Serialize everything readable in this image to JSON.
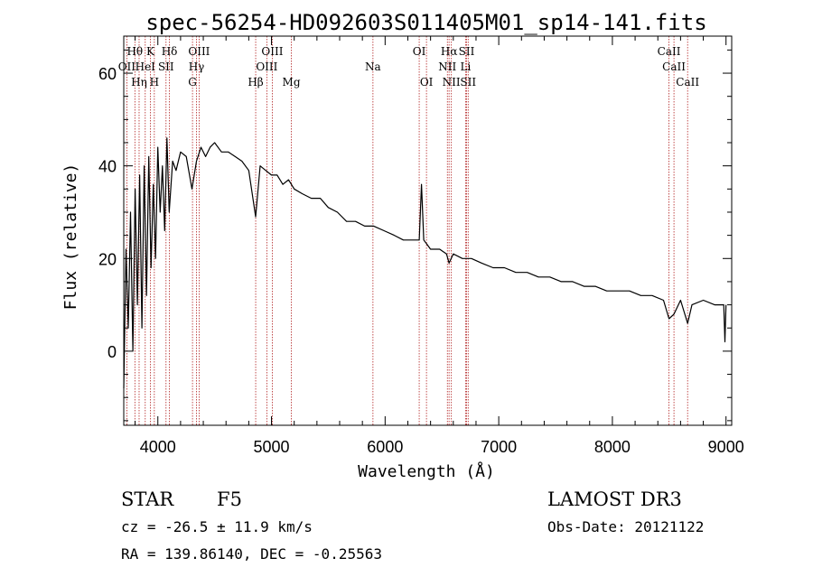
{
  "chart_data": {
    "type": "line",
    "title": "spec-56254-HD092603S011405M01_sp14-141.fits",
    "xlabel": "Wavelength (Å)",
    "ylabel": "Flux (relative)",
    "xlim": [
      3700,
      9050
    ],
    "ylim": [
      -16,
      68
    ],
    "x_ticks": [
      4000,
      5000,
      6000,
      7000,
      8000,
      9000
    ],
    "y_ticks": [
      0,
      20,
      40,
      60
    ],
    "series": [
      {
        "name": "spectrum",
        "x": [
          3700,
          3720,
          3740,
          3760,
          3780,
          3800,
          3820,
          3840,
          3860,
          3880,
          3900,
          3920,
          3940,
          3960,
          3980,
          4000,
          4020,
          4040,
          4060,
          4080,
          4100,
          4130,
          4160,
          4200,
          4250,
          4300,
          4340,
          4380,
          4420,
          4460,
          4500,
          4560,
          4620,
          4680,
          4740,
          4800,
          4861,
          4900,
          4950,
          5000,
          5050,
          5100,
          5150,
          5200,
          5270,
          5350,
          5430,
          5500,
          5580,
          5660,
          5740,
          5820,
          5900,
          5990,
          6080,
          6160,
          6240,
          6300,
          6320,
          6340,
          6370,
          6400,
          6480,
          6540,
          6563,
          6600,
          6680,
          6760,
          6850,
          6950,
          7050,
          7150,
          7250,
          7350,
          7450,
          7550,
          7650,
          7750,
          7850,
          7950,
          8050,
          8150,
          8250,
          8350,
          8450,
          8498,
          8542,
          8600,
          8662,
          8700,
          8800,
          8900,
          8980,
          8990,
          9000
        ],
        "values": [
          -8,
          22,
          5,
          30,
          0,
          35,
          10,
          38,
          5,
          40,
          12,
          42,
          18,
          36,
          20,
          44,
          30,
          40,
          26,
          46,
          30,
          41,
          39,
          43,
          42,
          35,
          41,
          44,
          42,
          44,
          45,
          43,
          43,
          42,
          41,
          39,
          29,
          40,
          39,
          38,
          38,
          36,
          37,
          35,
          34,
          33,
          33,
          31,
          30,
          28,
          28,
          27,
          27,
          26,
          25,
          24,
          24,
          24,
          36,
          24,
          23,
          22,
          22,
          21,
          19,
          21,
          20,
          20,
          19,
          18,
          18,
          17,
          17,
          16,
          16,
          15,
          15,
          14,
          14,
          13,
          13,
          13,
          12,
          12,
          11,
          7,
          8,
          11,
          6,
          10,
          11,
          10,
          10,
          2,
          10
        ]
      }
    ],
    "spectral_lines": [
      {
        "label": "Hθ",
        "wavelength": 3798,
        "row": 1
      },
      {
        "label": "K",
        "wavelength": 3934,
        "row": 1
      },
      {
        "label": "Hδ",
        "wavelength": 4102,
        "row": 1
      },
      {
        "label": "OIII",
        "wavelength": 4363,
        "row": 1
      },
      {
        "label": "OIII",
        "wavelength": 5007,
        "row": 1
      },
      {
        "label": "OI",
        "wavelength": 6300,
        "row": 1
      },
      {
        "label": "Hα",
        "wavelength": 6563,
        "row": 1
      },
      {
        "label": "SII",
        "wavelength": 6717,
        "row": 1
      },
      {
        "label": "CaII",
        "wavelength": 8498,
        "row": 1
      },
      {
        "label": "OII",
        "wavelength": 3727,
        "row": 2
      },
      {
        "label": "HeI",
        "wavelength": 3889,
        "row": 2
      },
      {
        "label": "SII",
        "wavelength": 4072,
        "row": 2
      },
      {
        "label": "Hγ",
        "wavelength": 4340,
        "row": 2
      },
      {
        "label": "OIII",
        "wavelength": 4959,
        "row": 2
      },
      {
        "label": "Na",
        "wavelength": 5893,
        "row": 2
      },
      {
        "label": "NII",
        "wavelength": 6548,
        "row": 2
      },
      {
        "label": "Li",
        "wavelength": 6708,
        "row": 2
      },
      {
        "label": "CaII",
        "wavelength": 8542,
        "row": 2
      },
      {
        "label": "Hη",
        "wavelength": 3835,
        "row": 3
      },
      {
        "label": "H",
        "wavelength": 3969,
        "row": 3
      },
      {
        "label": "G",
        "wavelength": 4305,
        "row": 3
      },
      {
        "label": "Hβ",
        "wavelength": 4861,
        "row": 3
      },
      {
        "label": "Mg",
        "wavelength": 5175,
        "row": 3
      },
      {
        "label": "OI",
        "wavelength": 6364,
        "row": 3
      },
      {
        "label": "NII",
        "wavelength": 6583,
        "row": 3
      },
      {
        "label": "SII",
        "wavelength": 6731,
        "row": 3
      },
      {
        "label": "CaII",
        "wavelength": 8662,
        "row": 3
      }
    ],
    "colors": {
      "spectrum": "#000000",
      "line_markers": "#b22222",
      "axes": "#000000"
    }
  },
  "info": {
    "object_class": "STAR",
    "subclass": "F5",
    "survey": "LAMOST DR3",
    "redshift": "cz = -26.5 ± 11.9 km/s",
    "obs_date": "Obs-Date: 20121122",
    "coords": "RA = 139.86140, DEC =  -0.25563"
  }
}
